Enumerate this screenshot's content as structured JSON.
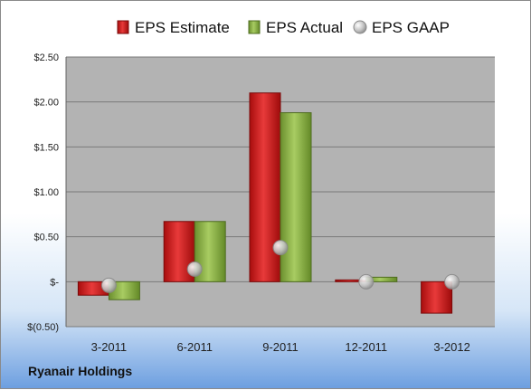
{
  "company": "Ryanair Holdings",
  "colors": {
    "estimate": "#d42222",
    "actual": "#8db44a",
    "gaap": "#b8b8b8",
    "plot_bg": "#b3b3b3"
  },
  "chart_data": {
    "type": "bar",
    "categories": [
      "3-2011",
      "6-2011",
      "9-2011",
      "12-2011",
      "3-2012"
    ],
    "series": [
      {
        "name": "EPS Estimate",
        "kind": "bar",
        "values": [
          -0.15,
          0.67,
          2.1,
          0.02,
          -0.35
        ]
      },
      {
        "name": "EPS Actual",
        "kind": "bar",
        "values": [
          -0.2,
          0.67,
          1.88,
          0.05,
          null
        ]
      },
      {
        "name": "EPS GAAP",
        "kind": "marker",
        "values": [
          -0.04,
          0.14,
          0.38,
          0.0,
          0.0
        ]
      }
    ],
    "yticks": [
      -0.5,
      0,
      0.5,
      1.0,
      1.5,
      2.0,
      2.5
    ],
    "ytick_labels": [
      "$(0.50)",
      "$-",
      "$0.50",
      "$1.00",
      "$1.50",
      "$2.00",
      "$2.50"
    ],
    "ylim": [
      -0.5,
      2.5
    ],
    "grid": true,
    "legend_position": "top"
  }
}
